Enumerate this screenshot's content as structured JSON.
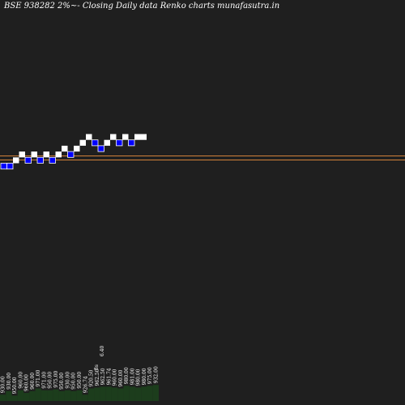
{
  "title": "BSE 938282  2%~-  Closing Daily data  Renko  charts munafasutra.in",
  "colors": {
    "background": "#1f1f1f",
    "up_brick": "#ffffff",
    "down_brick": "#0000ff",
    "down_brick_edge": "#ffffff",
    "reference_line": "#d2813a",
    "volume_bar": "#1c3d1c",
    "label_text": "#ffffff"
  },
  "chart_data": {
    "type": "renko",
    "brick_size_text": "2%",
    "bricks": [
      {
        "dir": "down",
        "level": 0
      },
      {
        "dir": "down",
        "level": 0
      },
      {
        "dir": "up",
        "level": 1
      },
      {
        "dir": "up",
        "level": 2
      },
      {
        "dir": "down",
        "level": 1
      },
      {
        "dir": "up",
        "level": 2
      },
      {
        "dir": "down",
        "level": 1
      },
      {
        "dir": "up",
        "level": 2
      },
      {
        "dir": "down",
        "level": 1
      },
      {
        "dir": "up",
        "level": 2
      },
      {
        "dir": "up",
        "level": 3
      },
      {
        "dir": "down",
        "level": 2
      },
      {
        "dir": "up",
        "level": 3
      },
      {
        "dir": "up",
        "level": 4
      },
      {
        "dir": "up",
        "level": 5
      },
      {
        "dir": "down",
        "level": 4
      },
      {
        "dir": "down",
        "level": 3
      },
      {
        "dir": "up",
        "level": 4
      },
      {
        "dir": "up",
        "level": 5
      },
      {
        "dir": "down",
        "level": 4
      },
      {
        "dir": "up",
        "level": 5
      },
      {
        "dir": "down",
        "level": 4
      },
      {
        "dir": "up",
        "level": 5
      },
      {
        "dir": "up",
        "level": 5
      }
    ],
    "reference_lines": [
      {
        "level": 2.25
      },
      {
        "level": 1.55
      }
    ],
    "volume": [
      {
        "label": "930.00",
        "value": 0.35
      },
      {
        "label": "930.00",
        "value": 0.55
      },
      {
        "label": "950.00",
        "value": 0.3
      },
      {
        "label": "960.00",
        "value": 0.6
      },
      {
        "label": "960.00",
        "value": 0.45
      },
      {
        "label": "960.00",
        "value": 0.55
      },
      {
        "label": "971.00",
        "value": 0.7
      },
      {
        "label": "971.00",
        "value": 0.6
      },
      {
        "label": "950.00",
        "value": 0.6
      },
      {
        "label": "975.00",
        "value": 0.65
      },
      {
        "label": "950.00",
        "value": 0.55
      },
      {
        "label": "930.00",
        "value": 0.6
      },
      {
        "label": "950.00",
        "value": 0.55
      },
      {
        "label": "950.00",
        "value": 0.6
      },
      {
        "label": "926.74",
        "value": 0.35
      },
      {
        "label": "920.50",
        "value": 0.7
      },
      {
        "label": "962.50",
        "value": 0.75
      },
      {
        "label": "962.50",
        "value": 0.8
      },
      {
        "label": "961.74",
        "value": 0.8
      },
      {
        "label": "960.00",
        "value": 0.75
      },
      {
        "label": "960.00",
        "value": 0.7
      },
      {
        "label": "980.00",
        "value": 0.85
      },
      {
        "label": "981.00",
        "value": 0.8
      },
      {
        "label": "980.00",
        "value": 0.75
      },
      {
        "label": "980.00",
        "value": 0.8
      },
      {
        "label": "975.00",
        "value": 0.85
      },
      {
        "label": "932.00",
        "value": 0.9
      }
    ],
    "extra_labels": [
      "6.40",
      "8s"
    ]
  }
}
